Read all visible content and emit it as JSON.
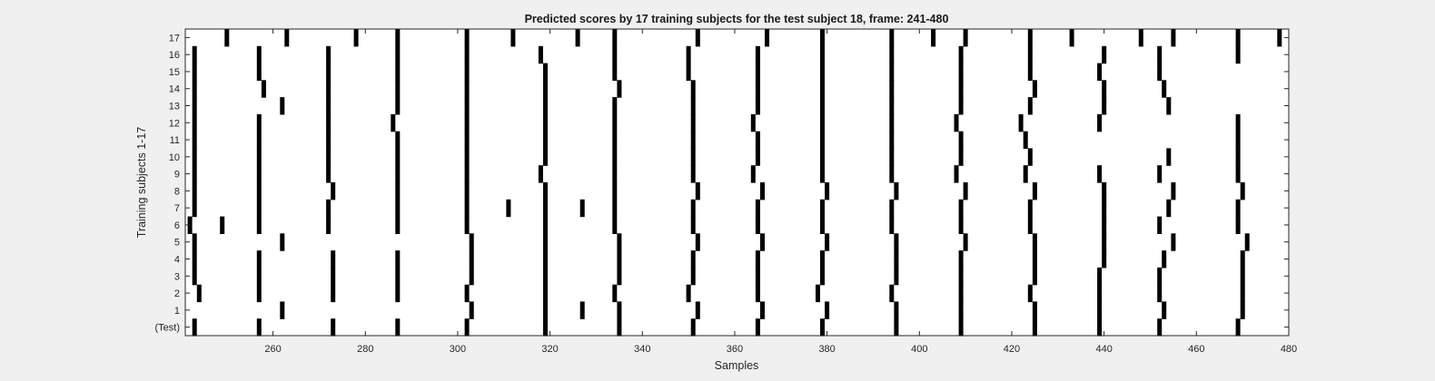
{
  "chart_data": {
    "type": "raster",
    "title": "Predicted scores by 17 training subjects for the test subject 18, frame: 241-480",
    "xlabel": "Samples",
    "ylabel": "Training subjects 1-17",
    "xlim": [
      241,
      480
    ],
    "x_ticks": [
      260,
      280,
      300,
      320,
      340,
      360,
      380,
      400,
      420,
      440,
      460,
      480
    ],
    "row_labels": [
      "(Test)",
      "1",
      "2",
      "3",
      "4",
      "5",
      "6",
      "7",
      "8",
      "9",
      "10",
      "11",
      "12",
      "13",
      "14",
      "15",
      "16",
      "17"
    ],
    "grid": false,
    "colors": {
      "background": "#f0f0f0",
      "plot": "#ffffff",
      "mark": "#000000",
      "axis": "#262626"
    },
    "rows": [
      {
        "label": "(Test)",
        "x": [
          243,
          257,
          273,
          287,
          302,
          319,
          335,
          351,
          365,
          379,
          395,
          409,
          425,
          439,
          452,
          469
        ]
      },
      {
        "label": "1",
        "x": [
          262,
          303,
          319,
          327,
          335,
          352,
          366,
          380,
          395,
          409,
          425,
          439,
          453,
          470
        ]
      },
      {
        "label": "2",
        "x": [
          244,
          257,
          273,
          287,
          302,
          319,
          334,
          350,
          365,
          378,
          394,
          409,
          424,
          439,
          452,
          470
        ]
      },
      {
        "label": "3",
        "x": [
          243,
          257,
          273,
          287,
          303,
          319,
          335,
          351,
          365,
          379,
          395,
          409,
          425,
          439,
          452,
          470
        ]
      },
      {
        "label": "4",
        "x": [
          243,
          257,
          273,
          287,
          303,
          319,
          335,
          351,
          365,
          379,
          395,
          409,
          425,
          440,
          453,
          470
        ]
      },
      {
        "label": "5",
        "x": [
          243,
          262,
          303,
          319,
          335,
          352,
          366,
          380,
          395,
          410,
          425,
          440,
          455,
          471
        ]
      },
      {
        "label": "6",
        "x": [
          242,
          249,
          257,
          272,
          287,
          302,
          319,
          334,
          351,
          365,
          379,
          394,
          409,
          424,
          440,
          452,
          469
        ]
      },
      {
        "label": "7",
        "x": [
          243,
          257,
          272,
          287,
          302,
          311,
          319,
          327,
          334,
          351,
          365,
          379,
          394,
          409,
          424,
          440,
          454,
          469
        ]
      },
      {
        "label": "8",
        "x": [
          243,
          257,
          273,
          287,
          302,
          319,
          334,
          352,
          366,
          380,
          395,
          410,
          425,
          440,
          455,
          470
        ]
      },
      {
        "label": "9",
        "x": [
          243,
          257,
          272,
          287,
          302,
          318,
          334,
          351,
          364,
          379,
          394,
          408,
          423,
          439,
          452,
          469
        ]
      },
      {
        "label": "10",
        "x": [
          243,
          257,
          272,
          287,
          302,
          319,
          334,
          351,
          365,
          379,
          394,
          409,
          424,
          454,
          469
        ]
      },
      {
        "label": "11",
        "x": [
          243,
          257,
          272,
          287,
          302,
          319,
          334,
          351,
          365,
          379,
          394,
          409,
          423,
          469
        ]
      },
      {
        "label": "12",
        "x": [
          243,
          257,
          272,
          286,
          302,
          319,
          334,
          351,
          364,
          379,
          394,
          408,
          422,
          439,
          469
        ]
      },
      {
        "label": "13",
        "x": [
          243,
          262,
          272,
          287,
          302,
          319,
          334,
          351,
          365,
          379,
          394,
          409,
          424,
          440,
          454
        ]
      },
      {
        "label": "14",
        "x": [
          243,
          258,
          272,
          287,
          302,
          319,
          335,
          351,
          365,
          379,
          394,
          409,
          425,
          440,
          453
        ]
      },
      {
        "label": "15",
        "x": [
          243,
          257,
          272,
          287,
          302,
          319,
          334,
          350,
          365,
          379,
          394,
          409,
          424,
          439,
          452
        ]
      },
      {
        "label": "16",
        "x": [
          243,
          257,
          272,
          287,
          302,
          318,
          334,
          350,
          365,
          379,
          394,
          409,
          424,
          440,
          452,
          469
        ]
      },
      {
        "label": "17",
        "x": [
          250,
          263,
          278,
          287,
          302,
          312,
          326,
          334,
          352,
          367,
          379,
          394,
          403,
          410,
          424,
          433,
          448,
          455,
          469,
          478
        ]
      }
    ]
  }
}
